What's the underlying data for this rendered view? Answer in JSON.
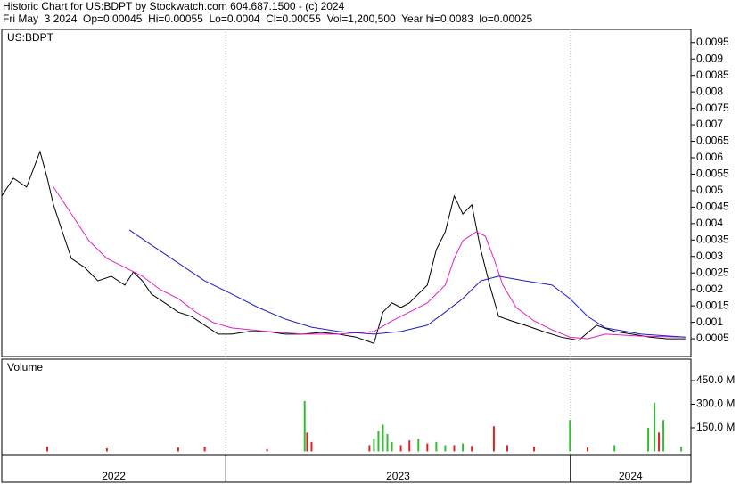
{
  "header": {
    "title": "Historic Chart for US:BDPT by Stockwatch.com 604.687.1500 - (c) 2024",
    "quote": "Fri May  3 2024  Op=0.00045  Hi=0.00055  Lo=0.0004  Cl=0.00055  Vol=1,200,500  Year hi=0.0083  lo=0.00025"
  },
  "chart_data": [
    {
      "type": "line",
      "label": "US:BDPT",
      "xlim": [
        2022.35,
        2024.35
      ],
      "ylim": [
        -4e-05,
        0.0099
      ],
      "xticks": [
        2022,
        2023,
        2024
      ],
      "yticks": [
        0.0005,
        0.001,
        0.0015,
        0.002,
        0.0025,
        0.003,
        0.0035,
        0.004,
        0.0045,
        0.005,
        0.0055,
        0.006,
        0.0065,
        0.007,
        0.0075,
        0.008,
        0.0085,
        0.009,
        0.0095
      ],
      "series": [
        {
          "color": "#000000",
          "x": [
            2022.35,
            2022.384,
            2022.422,
            2022.461,
            2022.482,
            2022.5,
            2022.526,
            2022.552,
            2022.59,
            2022.629,
            2022.668,
            2022.707,
            2022.732,
            2022.758,
            2022.784,
            2022.823,
            2022.862,
            2022.9,
            2022.939,
            2022.978,
            2023.017,
            2023.068,
            2023.12,
            2023.172,
            2023.223,
            2023.275,
            2023.327,
            2023.378,
            2023.43,
            2023.456,
            2023.482,
            2023.508,
            2023.533,
            2023.559,
            2023.585,
            2023.611,
            2023.637,
            2023.663,
            2023.688,
            2023.714,
            2023.74,
            2023.766,
            2023.792,
            2023.83,
            2023.869,
            2023.921,
            2023.973,
            2024.024,
            2024.076,
            2024.128,
            2024.179,
            2024.231,
            2024.282,
            2024.334
          ],
          "values": [
            0.00484,
            0.00538,
            0.00511,
            0.00619,
            0.00538,
            0.00457,
            0.00375,
            0.00294,
            0.00267,
            0.00226,
            0.0024,
            0.00213,
            0.00253,
            0.00226,
            0.00186,
            0.00159,
            0.00131,
            0.00118,
            0.00091,
            0.00064,
            0.00064,
            0.00072,
            0.00072,
            0.00064,
            0.00064,
            0.00069,
            0.00064,
            0.00055,
            0.00036,
            0.00131,
            0.00159,
            0.00145,
            0.00159,
            0.00186,
            0.00213,
            0.00321,
            0.00375,
            0.00484,
            0.00429,
            0.00457,
            0.00321,
            0.00213,
            0.00118,
            0.00104,
            0.00091,
            0.00072,
            0.00055,
            0.00045,
            0.00091,
            0.00072,
            0.00064,
            0.00055,
            0.0005,
            0.0005
          ]
        },
        {
          "color": "#e020c0",
          "x": [
            2022.5,
            2022.552,
            2022.603,
            2022.655,
            2022.707,
            2022.758,
            2022.81,
            2022.862,
            2022.913,
            2022.965,
            2023.017,
            2023.12,
            2023.223,
            2023.327,
            2023.43,
            2023.482,
            2023.533,
            2023.585,
            2023.637,
            2023.663,
            2023.688,
            2023.727,
            2023.753,
            2023.778,
            2023.804,
            2023.843,
            2023.895,
            2023.947,
            2023.999,
            2024.05,
            2024.102,
            2024.205,
            2024.334
          ],
          "values": [
            0.00511,
            0.00429,
            0.00348,
            0.00294,
            0.00267,
            0.0024,
            0.00199,
            0.00172,
            0.00131,
            0.00099,
            0.00083,
            0.00072,
            0.00064,
            0.00064,
            0.00072,
            0.00104,
            0.00131,
            0.00159,
            0.00213,
            0.00294,
            0.00348,
            0.00375,
            0.00362,
            0.00294,
            0.00213,
            0.00145,
            0.00104,
            0.00077,
            0.00055,
            0.0005,
            0.00064,
            0.00058,
            0.00055
          ]
        },
        {
          "color": "#2020c0",
          "x": [
            2022.72,
            2022.784,
            2022.862,
            2022.939,
            2023.017,
            2023.094,
            2023.172,
            2023.249,
            2023.327,
            2023.43,
            2023.508,
            2023.585,
            2023.637,
            2023.688,
            2023.74,
            2023.792,
            2023.869,
            2023.947,
            2023.999,
            2024.05,
            2024.102,
            2024.205,
            2024.334
          ],
          "values": [
            0.00381,
            0.00335,
            0.0028,
            0.00226,
            0.00186,
            0.00145,
            0.0011,
            0.00085,
            0.00072,
            0.00064,
            0.00072,
            0.00091,
            0.00131,
            0.00172,
            0.00226,
            0.0024,
            0.00226,
            0.00213,
            0.00172,
            0.00118,
            0.00083,
            0.00064,
            0.00055
          ]
        }
      ]
    },
    {
      "type": "bar",
      "label": "Volume",
      "xlim": [
        2022.35,
        2024.35
      ],
      "ylim": [
        -20,
        586
      ],
      "xticks": [
        2022,
        2023,
        2024
      ],
      "yticks": [
        {
          "value": 150,
          "label": "150.0 M"
        },
        {
          "value": 300,
          "label": "300.0 M"
        },
        {
          "value": 450,
          "label": "450.0 M"
        }
      ],
      "series": [
        {
          "color": "#33bb33",
          "x": [
            2023.229,
            2023.43,
            2023.443,
            2023.456,
            2023.469,
            2023.482,
            2023.559,
            2023.611,
            2023.637,
            2023.688,
            2023.999,
            2024.128,
            2024.226,
            2024.244,
            2024.27,
            2024.322
          ],
          "values": [
            320,
            80,
            130,
            170,
            110,
            60,
            80,
            60,
            40,
            50,
            200,
            40,
            150,
            310,
            200,
            30
          ]
        },
        {
          "color": "#dd2222",
          "x": [
            2022.482,
            2022.655,
            2022.862,
            2022.939,
            2023.12,
            2023.236,
            2023.249,
            2023.417,
            2023.508,
            2023.533,
            2023.585,
            2023.663,
            2023.714,
            2023.778,
            2023.817,
            2023.895,
            2024.05,
            2024.257
          ],
          "values": [
            30,
            20,
            25,
            30,
            15,
            120,
            60,
            40,
            40,
            70,
            50,
            40,
            35,
            160,
            40,
            30,
            25,
            120
          ]
        }
      ]
    }
  ]
}
